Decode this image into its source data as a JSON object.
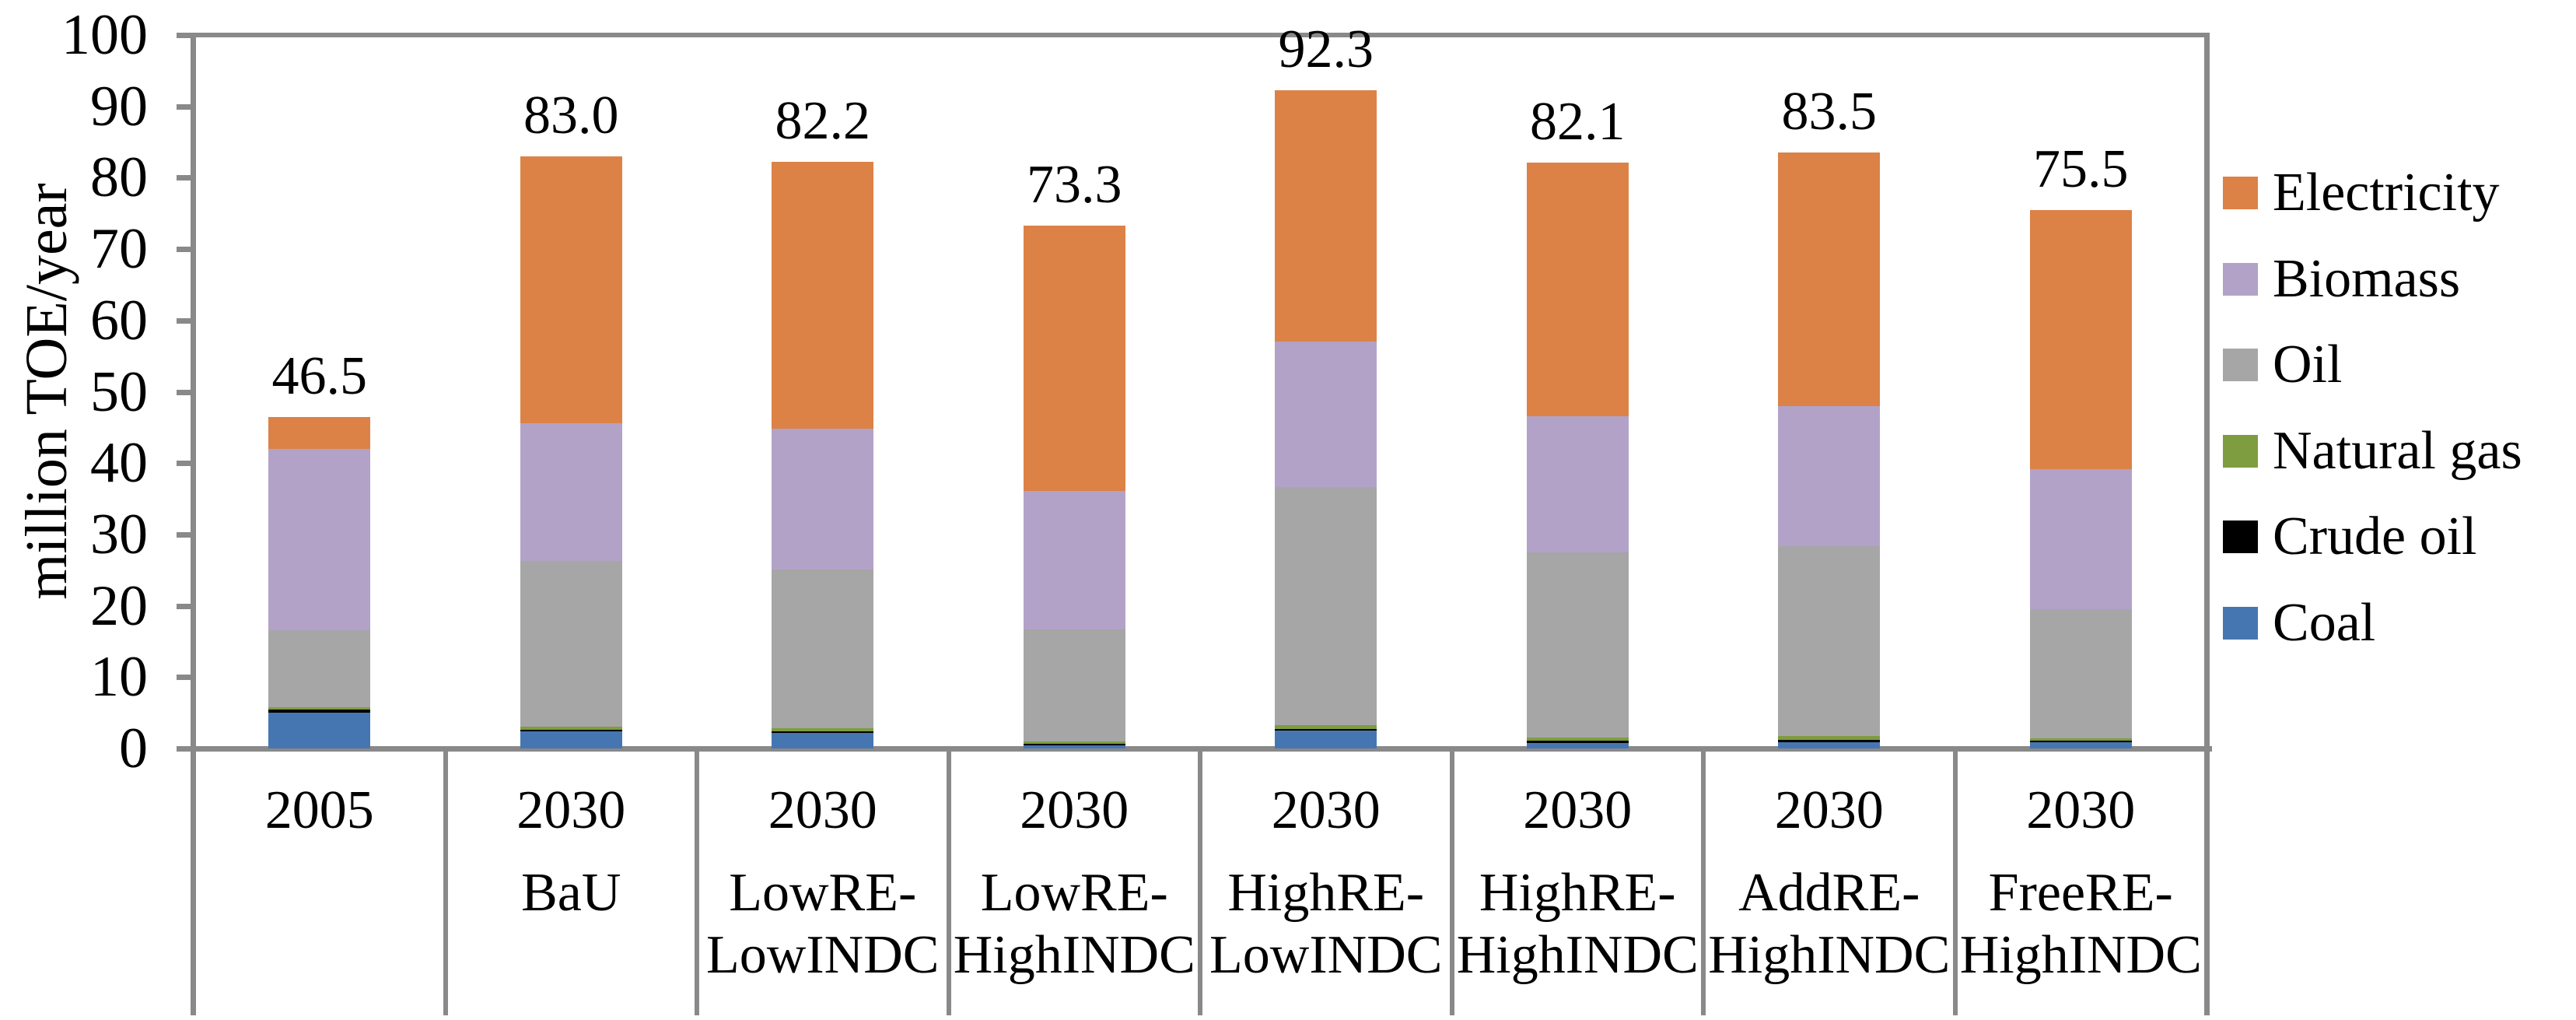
{
  "chart_data": {
    "type": "bar",
    "stacked": true,
    "title": "",
    "ylabel": "million TOE/year",
    "xlabel": "",
    "ylim": [
      0,
      100
    ],
    "grid": false,
    "legend_position": "right",
    "yticks": [
      "0",
      "10",
      "20",
      "30",
      "40",
      "50",
      "60",
      "70",
      "80",
      "90",
      "100"
    ],
    "categories": [
      {
        "year": "2005",
        "scenario": ""
      },
      {
        "year": "2030",
        "scenario": "BaU"
      },
      {
        "year": "2030",
        "scenario": "LowRE-LowINDC"
      },
      {
        "year": "2030",
        "scenario": "LowRE-HighINDC"
      },
      {
        "year": "2030",
        "scenario": "HighRE-LowINDC"
      },
      {
        "year": "2030",
        "scenario": "HighRE-HighINDC"
      },
      {
        "year": "2030",
        "scenario": "AddRE-HighINDC"
      },
      {
        "year": "2030",
        "scenario": "FreeRE-HighINDC"
      }
    ],
    "totals": [
      "46.5",
      "83.0",
      "82.2",
      "73.3",
      "92.3",
      "82.1",
      "83.5",
      "75.5"
    ],
    "series": [
      {
        "name": "Coal",
        "color": "#4676B1",
        "values": [
          5.0,
          2.4,
          2.2,
          0.4,
          2.5,
          0.8,
          0.9,
          0.85
        ]
      },
      {
        "name": "Crude oil",
        "color": "#000000",
        "values": [
          0.5,
          0.2,
          0.15,
          0.2,
          0.25,
          0.3,
          0.3,
          0.2
        ]
      },
      {
        "name": "Natural gas",
        "color": "#7E9C40",
        "values": [
          0.25,
          0.45,
          0.5,
          0.4,
          0.55,
          0.45,
          0.5,
          0.4
        ]
      },
      {
        "name": "Oil",
        "color": "#A6A6A6",
        "values": [
          10.85,
          23.25,
          22.25,
          15.65,
          33.3,
          25.95,
          26.7,
          18.05
        ]
      },
      {
        "name": "Biomass",
        "color": "#B2A2C8",
        "values": [
          25.4,
          19.3,
          19.7,
          19.5,
          20.4,
          19.1,
          19.6,
          19.7
        ]
      },
      {
        "name": "Electricity",
        "color": "#DC8246",
        "values": [
          4.5,
          37.4,
          37.4,
          37.1,
          35.3,
          35.5,
          35.5,
          36.3
        ]
      }
    ],
    "legend": [
      {
        "label": "Electricity",
        "color": "#DC8246"
      },
      {
        "label": "Biomass",
        "color": "#B2A2C8"
      },
      {
        "label": "Oil",
        "color": "#A6A6A6"
      },
      {
        "label": "Natural gas",
        "color": "#7E9C40"
      },
      {
        "label": "Crude oil",
        "color": "#000000"
      },
      {
        "label": "Coal",
        "color": "#4676B1"
      }
    ],
    "axis_color": "#898989"
  }
}
